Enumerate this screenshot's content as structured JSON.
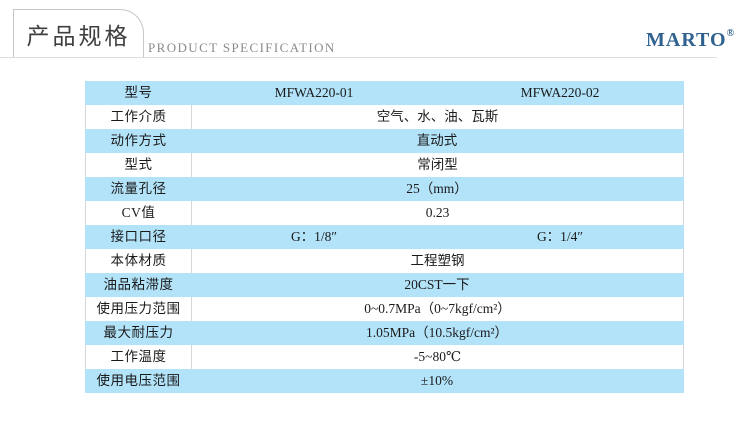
{
  "header": {
    "tab_title": "产品规格",
    "subtitle": "PRODUCT SPECIFICATION",
    "brand": "MARTO",
    "brand_mark": "®",
    "brand_color": "#30618F"
  },
  "table": {
    "colors": {
      "blue_row_bg": "#B3E3F9",
      "border": "#D7D7D7",
      "text": "#1A1A1A"
    },
    "rows": [
      {
        "label": "型号",
        "values": [
          "MFWA220-01",
          "MFWA220-02"
        ]
      },
      {
        "label": "工作介质",
        "values": [
          "空气、水、油、瓦斯"
        ]
      },
      {
        "label": "动作方式",
        "values": [
          "直动式"
        ]
      },
      {
        "label": "型式",
        "values": [
          "常闭型"
        ]
      },
      {
        "label": "流量孔径",
        "values": [
          "25（mm）"
        ]
      },
      {
        "label": "CV值",
        "values": [
          "0.23"
        ]
      },
      {
        "label": "接口口径",
        "values": [
          "G：1/8″",
          "G：1/4″"
        ]
      },
      {
        "label": "本体材质",
        "values": [
          "工程塑钢"
        ]
      },
      {
        "label": "油品粘滞度",
        "values": [
          "20CST一下"
        ]
      },
      {
        "label": "使用压力范围",
        "values": [
          "0~0.7MPa（0~7kgf/cm²）"
        ]
      },
      {
        "label": "最大耐压力",
        "values": [
          "1.05MPa（10.5kgf/cm²）"
        ]
      },
      {
        "label": "工作温度",
        "values": [
          "-5~80℃"
        ]
      },
      {
        "label": "使用电压范围",
        "values": [
          "±10%"
        ]
      }
    ]
  }
}
